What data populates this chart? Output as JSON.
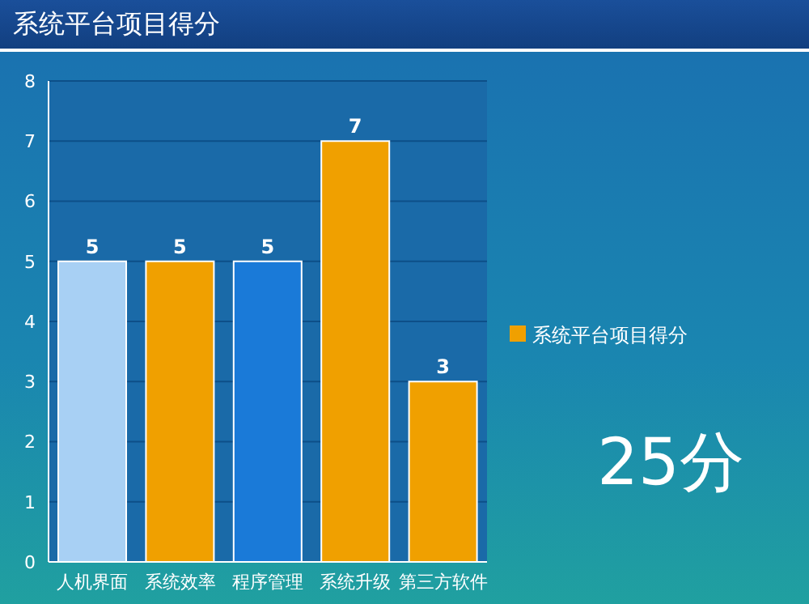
{
  "chart_data": {
    "type": "bar",
    "title": "系统平台项目得分",
    "categories": [
      "人机界面",
      "系统效率",
      "程序管理",
      "系统升级",
      "第三方软件"
    ],
    "series": [
      {
        "name": "系统平台项目得分",
        "color": "#f0a000",
        "values": [
          5,
          5,
          5,
          7,
          3
        ],
        "colors": [
          "#a8d0f4",
          "#f0a000",
          "#1a7ad8",
          "#f0a000",
          "#f0a000"
        ]
      }
    ],
    "ylim": [
      0,
      8
    ],
    "yticks": [
      0,
      1,
      2,
      3,
      4,
      5,
      6,
      7,
      8
    ],
    "grid": "y",
    "legend": "right",
    "data_labels": true,
    "annotations": [
      "25分"
    ]
  }
}
